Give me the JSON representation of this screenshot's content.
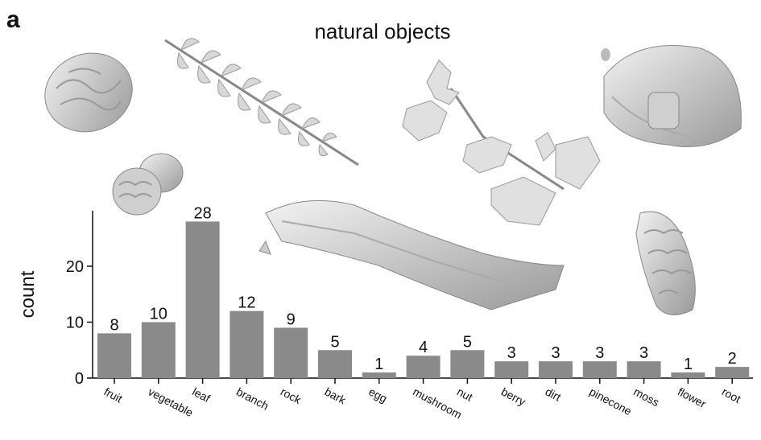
{
  "panel_label": "a",
  "chart_data": {
    "type": "bar",
    "title": "natural objects",
    "xlabel": "",
    "ylabel": "count",
    "categories": [
      "fruit",
      "vegetable",
      "leaf",
      "branch",
      "rock",
      "bark",
      "egg",
      "mushroom",
      "nut",
      "berry",
      "dirt",
      "pinecone",
      "moss",
      "flower",
      "root"
    ],
    "values": [
      8,
      10,
      28,
      12,
      9,
      5,
      1,
      4,
      5,
      3,
      3,
      3,
      3,
      1,
      2
    ],
    "ylim": [
      0,
      30
    ],
    "yticks": [
      0,
      10,
      20
    ],
    "grid": false,
    "bar_color": "#8a8a8a"
  },
  "illustrations": [
    "walnut-icon",
    "fern-leaf-icon",
    "holly-branch-icon",
    "mushroom-icon",
    "acorn-icon",
    "branch-icon",
    "pinecone-icon"
  ]
}
